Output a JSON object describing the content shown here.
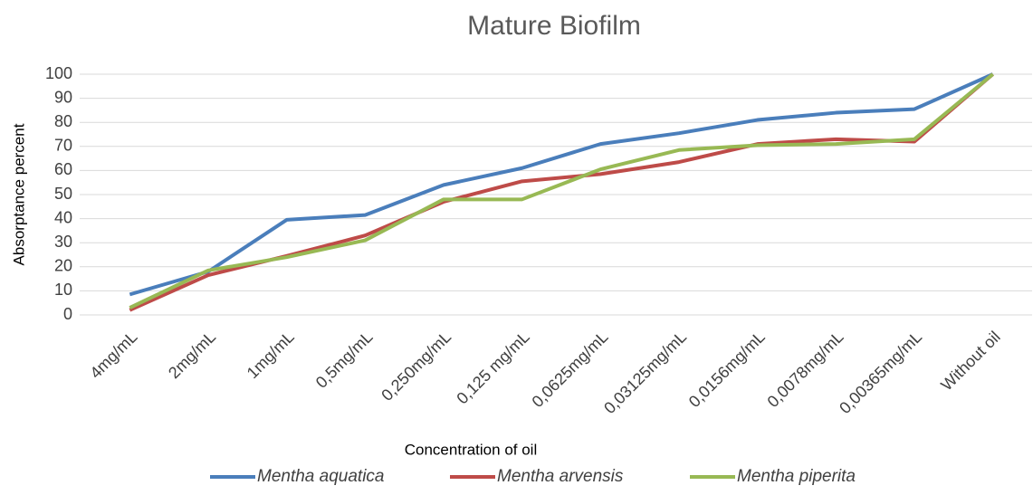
{
  "chart_data": {
    "type": "line",
    "title": "Mature Biofilm",
    "x_label": "Concentration of oil",
    "y_label": "Absorptance percent",
    "categories": [
      "4mg/mL",
      "2mg/mL",
      "1mg/mL",
      "0,5mg/mL",
      "0,250mg/mL",
      "0,125 mg/mL",
      "0,0625mg/mL",
      "0,03125mg/mL",
      "0,0156mg/mL",
      "0,0078mg/mL",
      "0,00365mg/mL",
      "Without oil"
    ],
    "series": [
      {
        "name": "Mentha aquatica",
        "color": "#4a7ebb",
        "values": [
          8.5,
          18,
          39.5,
          41.5,
          54,
          61,
          71,
          75.5,
          81,
          84,
          85.5,
          100
        ]
      },
      {
        "name": "Mentha arvensis",
        "color": "#be4b48",
        "values": [
          2,
          16.5,
          24.5,
          33,
          47,
          55.5,
          58.5,
          63.5,
          71,
          73,
          72,
          100
        ]
      },
      {
        "name": "Mentha piperita",
        "color": "#98b954",
        "values": [
          3,
          18.5,
          24,
          31,
          48,
          48,
          60.5,
          68.5,
          70.5,
          71,
          73,
          100
        ]
      }
    ],
    "ylim": [
      0,
      100
    ],
    "yticks": [
      0,
      10,
      20,
      30,
      40,
      50,
      60,
      70,
      80,
      90,
      100
    ],
    "grid": true,
    "legend": "bottom"
  }
}
